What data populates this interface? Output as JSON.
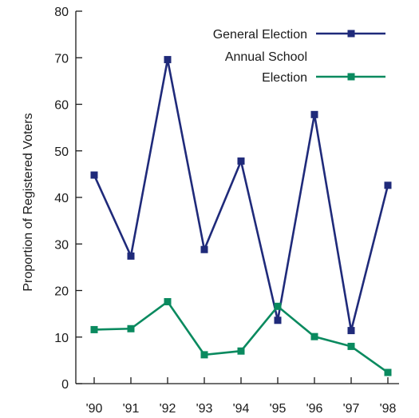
{
  "chart_data": {
    "type": "line",
    "title": "",
    "xlabel": "",
    "ylabel": "Proportion of Registered Voters",
    "categories": [
      "'90",
      "'91",
      "'92",
      "'93",
      "'94",
      "'95",
      "'96",
      "'97",
      "'98"
    ],
    "ylim": [
      0,
      80
    ],
    "yticks": [
      0,
      10,
      20,
      30,
      40,
      50,
      60,
      70,
      80
    ],
    "grid": false,
    "legend": "top-right",
    "series": [
      {
        "name": "General Election",
        "color": "#1f2a7a",
        "marker": "square",
        "values": [
          44.8,
          27.4,
          69.6,
          28.8,
          47.8,
          13.6,
          57.8,
          11.4,
          42.6
        ]
      },
      {
        "name_lines": [
          "Annual School",
          "Election"
        ],
        "color": "#0a8a5f",
        "marker": "square",
        "values": [
          11.6,
          11.8,
          17.6,
          6.2,
          7.0,
          16.6,
          10.1,
          8.0,
          2.4
        ]
      }
    ]
  }
}
